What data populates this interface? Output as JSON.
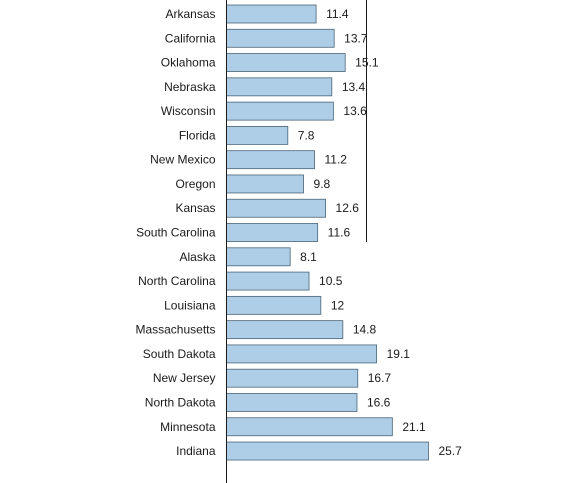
{
  "chart_data": {
    "type": "bar",
    "orientation": "horizontal",
    "title": "",
    "xlabel": "",
    "ylabel": "",
    "categories": [
      "Arkansas",
      "California",
      "Oklahoma",
      "Nebraska",
      "Wisconsin",
      "Florida",
      "New Mexico",
      "Oregon",
      "Kansas",
      "South Carolina",
      "Alaska",
      "North Carolina",
      "Louisiana",
      "Massachusetts",
      "South Dakota",
      "New Jersey",
      "North Dakota",
      "Minnesota",
      "Indiana"
    ],
    "values": [
      11.4,
      13.7,
      15.1,
      13.4,
      13.6,
      7.8,
      11.2,
      9.8,
      12.6,
      11.6,
      8.1,
      10.5,
      12,
      14.8,
      19.1,
      16.7,
      16.6,
      21.1,
      25.7
    ],
    "value_labels": [
      "11.4",
      "13.7",
      "15.1",
      "13.4",
      "13.6",
      "7.8",
      "11.2",
      "9.8",
      "12.6",
      "11.6",
      "8.1",
      "10.5",
      "12",
      "14.8",
      "19.1",
      "16.7",
      "16.6",
      "21.1",
      "25.7"
    ],
    "xlim": [
      0,
      25.7
    ],
    "grid": false,
    "legend": "none",
    "colors": {
      "bar_fill": "#aecde6",
      "bar_stroke": "#4a6478",
      "axis": "#1a1a1a",
      "reference_line": "#1a1a1a",
      "text": "#1a1a1a"
    }
  }
}
